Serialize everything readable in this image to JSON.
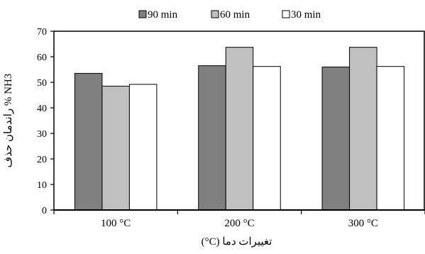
{
  "chart_data": {
    "type": "bar",
    "categories": [
      "100 °C",
      "200 °C",
      "300 °C"
    ],
    "series": [
      {
        "name": "90 min",
        "values": [
          53.5,
          56.5,
          56
        ],
        "color": "#808080"
      },
      {
        "name": "60 min",
        "values": [
          48.5,
          63.7,
          63.7
        ],
        "color": "#c0c0c0"
      },
      {
        "name": "30 min",
        "values": [
          49.2,
          56.2,
          56.2
        ],
        "color": "#ffffff"
      }
    ],
    "xlabel": "تغییرات دما (C°)",
    "ylabel": "راندمان حذف % NH3",
    "ylim": [
      0,
      70
    ],
    "yticks": [
      0,
      10,
      20,
      30,
      40,
      50,
      60,
      70
    ],
    "grid": false,
    "legend_position": "top"
  }
}
